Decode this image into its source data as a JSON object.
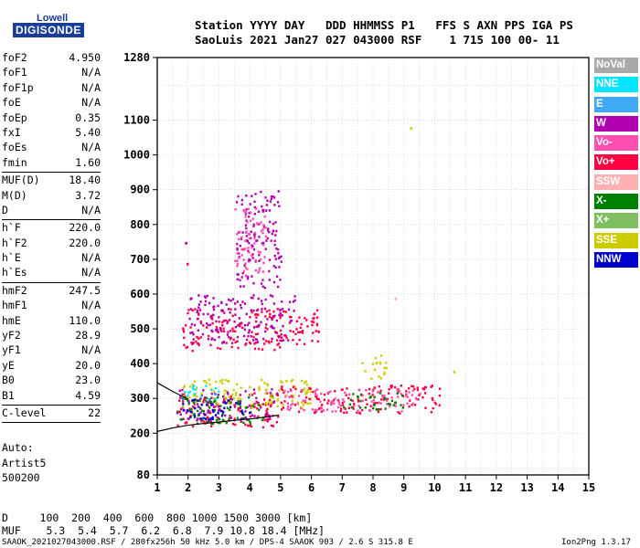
{
  "logo": {
    "top": "Lowell",
    "main": "DIGISONDE"
  },
  "header": {
    "labels": "Station YYYY DAY   DDD HHMMSS P1   FFS S AXN PPS IGA PS",
    "values": "SaoLuis 2021 Jan27 027 043000 RSF    1 715 100 00- 11"
  },
  "params": [
    {
      "name": "foF2",
      "value": "4.950"
    },
    {
      "name": "foF1",
      "value": "N/A"
    },
    {
      "name": "foF1p",
      "value": "N/A"
    },
    {
      "name": "foE",
      "value": "N/A"
    },
    {
      "name": "foEp",
      "value": "0.35"
    },
    {
      "name": "fxI",
      "value": "5.40"
    },
    {
      "name": "foEs",
      "value": "N/A"
    },
    {
      "name": "fmin",
      "value": "1.60"
    },
    {
      "sep": true
    },
    {
      "name": "MUF(D)",
      "value": "18.40"
    },
    {
      "name": "M(D)",
      "value": "3.72"
    },
    {
      "name": "D",
      "value": "N/A"
    },
    {
      "sep": true
    },
    {
      "name": "h`F",
      "value": "220.0"
    },
    {
      "name": "h`F2",
      "value": "220.0"
    },
    {
      "name": "h`E",
      "value": "N/A"
    },
    {
      "name": "h`Es",
      "value": "N/A"
    },
    {
      "sep": true
    },
    {
      "name": "hmF2",
      "value": "247.5"
    },
    {
      "name": "hmF1",
      "value": "N/A"
    },
    {
      "name": "hmE",
      "value": "110.0"
    },
    {
      "name": "yF2",
      "value": "28.9"
    },
    {
      "name": "yF1",
      "value": "N/A"
    },
    {
      "name": "yE",
      "value": "20.0"
    },
    {
      "name": "B0",
      "value": "23.0"
    },
    {
      "name": "B1",
      "value": "4.59"
    },
    {
      "sep": true
    },
    {
      "name": "C-level",
      "value": "22"
    },
    {
      "sep": true
    }
  ],
  "auto": [
    "Auto:",
    "Artist5",
    "500200"
  ],
  "footer": {
    "d_row": "D     100  200  400  600  800 1000 1500 3000 [km]",
    "muf_row": "MUF    5.3  5.4  5.7  6.2  6.8  7.9 10.8 18.4 [MHz]",
    "file": "SAAOK_2021027043000.RSF / 280fx256h 50 kHz 5.0 km / DPS-4 SAAOK 903 / 2.6 S 315.8 E",
    "version": "Ion2Png 1.3.17"
  },
  "legend": [
    {
      "label": "NoVal",
      "color": "#a9a9a9"
    },
    {
      "label": "NNE",
      "color": "#00e5ff"
    },
    {
      "label": "E",
      "color": "#3fa9f5"
    },
    {
      "label": "W",
      "color": "#b000b0"
    },
    {
      "label": "Vo-",
      "color": "#ff4fb0"
    },
    {
      "label": "Vo+",
      "color": "#ff0040"
    },
    {
      "label": "SSW",
      "color": "#ffb0b0"
    },
    {
      "label": "X-",
      "color": "#008000"
    },
    {
      "label": "X+",
      "color": "#7fbf5f"
    },
    {
      "label": "SSE",
      "color": "#cccc00"
    },
    {
      "label": "NNW",
      "color": "#0000cc"
    }
  ],
  "chart_data": {
    "type": "scatter",
    "title": "",
    "xlabel": "",
    "ylabel": "",
    "xlim": [
      1,
      15
    ],
    "ylim": [
      80,
      1280
    ],
    "x_ticks": [
      "1",
      "2",
      "3",
      "4",
      "5",
      "6",
      "7",
      "8",
      "9",
      "10",
      "11",
      "12",
      "13",
      "14",
      "15"
    ],
    "y_ticks": [
      {
        "value": 80,
        "label": "80"
      },
      {
        "value": 200,
        "label": "200"
      },
      {
        "value": 300,
        "label": "300"
      },
      {
        "value": 400,
        "label": "400"
      },
      {
        "value": 500,
        "label": "500"
      },
      {
        "value": 600,
        "label": "600"
      },
      {
        "value": 700,
        "label": "700"
      },
      {
        "value": 800,
        "label": "800"
      },
      {
        "value": 900,
        "label": "900"
      },
      {
        "value": 1000,
        "label": "1000"
      },
      {
        "value": 1100,
        "label": "1100"
      },
      {
        "value": 1280,
        "label": "1280"
      }
    ],
    "grid": true,
    "profile": {
      "name": "O-trace profile",
      "x": [
        1.0,
        1.5,
        2.0,
        2.5,
        3.0,
        3.5,
        4.0,
        4.5,
        4.95
      ],
      "y": [
        205,
        215,
        223,
        228,
        232,
        237,
        241,
        246,
        252
      ]
    },
    "profile_upper": {
      "x": [
        1.0,
        1.5,
        2.0
      ],
      "y": [
        345,
        320,
        298
      ]
    },
    "echo_regions": [
      {
        "name": "main F trace",
        "x": [
          1.6,
          4.9
        ],
        "y": [
          220,
          320
        ],
        "color": "#ff0040"
      },
      {
        "name": "main F trace W",
        "x": [
          1.6,
          4.9
        ],
        "y": [
          240,
          330
        ],
        "color": "#b000b0"
      },
      {
        "name": "main F trace SSE",
        "x": [
          1.8,
          6.0
        ],
        "y": [
          270,
          360
        ],
        "color": "#cccc00"
      },
      {
        "name": "main F trace X-",
        "x": [
          1.6,
          4.5
        ],
        "y": [
          230,
          310
        ],
        "color": "#008000"
      },
      {
        "name": "main F trace NNE",
        "x": [
          1.7,
          3.0
        ],
        "y": [
          300,
          340
        ],
        "color": "#00e5ff"
      },
      {
        "name": "main F trace NNW",
        "x": [
          1.8,
          4.0
        ],
        "y": [
          240,
          300
        ],
        "color": "#0000cc"
      },
      {
        "name": "extraordinary trace",
        "x": [
          4.9,
          10.2
        ],
        "y": [
          260,
          340
        ],
        "color": "#ff0040"
      },
      {
        "name": "extraordinary trace Vo-",
        "x": [
          5.0,
          9.5
        ],
        "y": [
          265,
          330
        ],
        "color": "#ff4fb0"
      },
      {
        "name": "extraordinary trace X-",
        "x": [
          7.0,
          9.0
        ],
        "y": [
          270,
          320
        ],
        "color": "#008000"
      },
      {
        "name": "SSE cluster",
        "x": [
          7.6,
          8.4
        ],
        "y": [
          360,
          430
        ],
        "color": "#cccc00"
      },
      {
        "name": "second hop",
        "x": [
          1.8,
          6.3
        ],
        "y": [
          440,
          560
        ],
        "color": "#ff0040"
      },
      {
        "name": "second hop W",
        "x": [
          2.0,
          5.5
        ],
        "y": [
          460,
          600
        ],
        "color": "#b000b0"
      },
      {
        "name": "high spread",
        "x": [
          3.5,
          5.0
        ],
        "y": [
          620,
          900
        ],
        "color": "#b000b0"
      },
      {
        "name": "high spread Vo-",
        "x": [
          3.5,
          4.5
        ],
        "y": [
          650,
          850
        ],
        "color": "#ff4fb0"
      }
    ],
    "isolated_points": [
      {
        "x": 1.9,
        "y": 750,
        "color": "#b000b0"
      },
      {
        "x": 1.95,
        "y": 690,
        "color": "#ff0040"
      },
      {
        "x": 9.2,
        "y": 1080,
        "color": "#cccc00"
      },
      {
        "x": 8.7,
        "y": 590,
        "color": "#ffb0b0"
      },
      {
        "x": 10.6,
        "y": 380,
        "color": "#cccc00"
      }
    ]
  }
}
